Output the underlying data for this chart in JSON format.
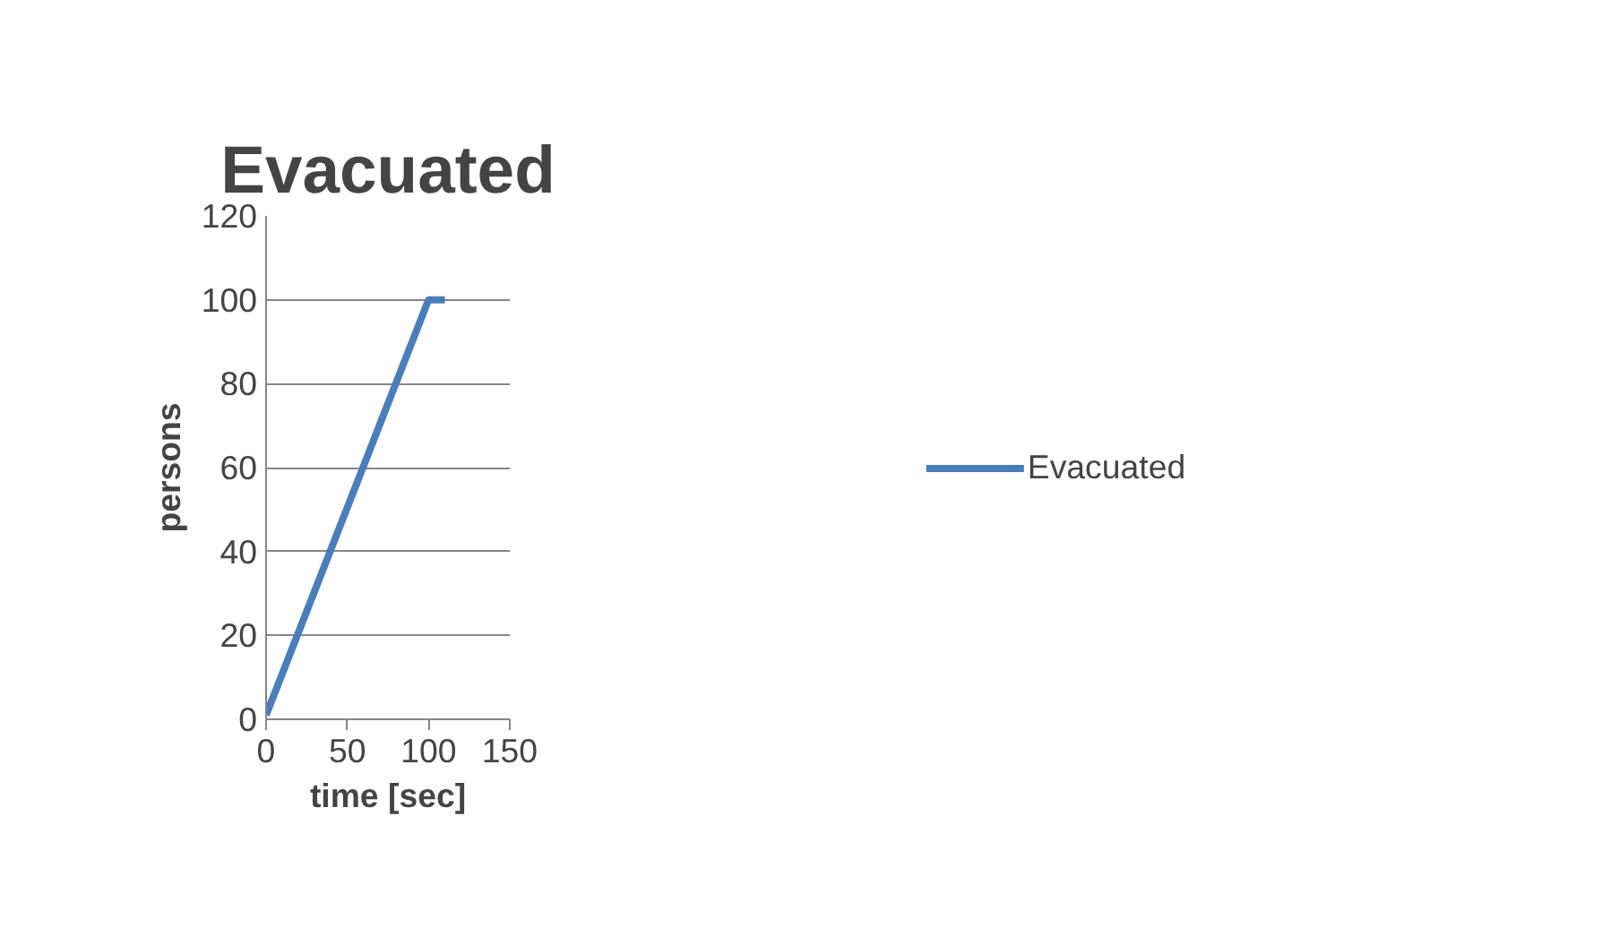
{
  "chart_data": {
    "type": "line",
    "title": "Evacuated",
    "xlabel": "time [sec]",
    "ylabel": "persons",
    "x": [
      0,
      100,
      110
    ],
    "series": [
      {
        "name": "Evacuated",
        "color": "#4a7ebb",
        "values": [
          1,
          100,
          100
        ]
      }
    ],
    "xlim": [
      0,
      150
    ],
    "xticks": [
      0,
      50,
      100,
      150
    ],
    "ylim": [
      0,
      120
    ],
    "yticks": [
      0,
      20,
      40,
      60,
      80,
      100,
      120
    ],
    "grid": "y",
    "legend": "right",
    "marker": "none",
    "line_style": "solid"
  }
}
